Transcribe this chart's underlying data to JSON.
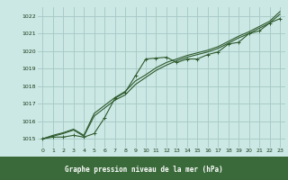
{
  "title": "Graphe pression niveau de la mer (hPa)",
  "bg_color": "#cce8e4",
  "grid_color": "#a8ccc8",
  "line_color": "#2d5a2d",
  "text_color": "#1a3a1a",
  "xlabel_bg": "#3a6a3a",
  "xlabel_fg": "#ffffff",
  "xlim": [
    -0.5,
    23.5
  ],
  "ylim": [
    1014.5,
    1022.5
  ],
  "xticks": [
    0,
    1,
    2,
    3,
    4,
    5,
    6,
    7,
    8,
    9,
    10,
    11,
    12,
    13,
    14,
    15,
    16,
    17,
    18,
    19,
    20,
    21,
    22,
    23
  ],
  "yticks": [
    1015,
    1016,
    1017,
    1018,
    1019,
    1020,
    1021,
    1022
  ],
  "series1_x": [
    0,
    1,
    2,
    3,
    4,
    5,
    6,
    7,
    8,
    9,
    10,
    11,
    12,
    13,
    14,
    15,
    16,
    17,
    18,
    19,
    20,
    21,
    22,
    23
  ],
  "series1_y": [
    1015.0,
    1015.1,
    1015.1,
    1015.2,
    1015.1,
    1015.3,
    1016.2,
    1017.3,
    1017.65,
    1018.6,
    1019.55,
    1019.6,
    1019.65,
    1019.35,
    1019.55,
    1019.55,
    1019.8,
    1019.95,
    1020.4,
    1020.5,
    1021.0,
    1021.15,
    1021.6,
    1021.85
  ],
  "series2_x": [
    0,
    1,
    2,
    3,
    4,
    5,
    6,
    7,
    8,
    9,
    10,
    11,
    12,
    13,
    14,
    15,
    16,
    17,
    18,
    19,
    20,
    21,
    22,
    23
  ],
  "series2_y": [
    1015.0,
    1015.15,
    1015.3,
    1015.5,
    1015.15,
    1016.3,
    1016.75,
    1017.2,
    1017.5,
    1018.1,
    1018.5,
    1018.9,
    1019.2,
    1019.45,
    1019.65,
    1019.8,
    1019.95,
    1020.15,
    1020.45,
    1020.75,
    1021.0,
    1021.3,
    1021.6,
    1022.1
  ],
  "series3_x": [
    0,
    1,
    2,
    3,
    4,
    5,
    6,
    7,
    8,
    9,
    10,
    11,
    12,
    13,
    14,
    15,
    16,
    17,
    18,
    19,
    20,
    21,
    22,
    23
  ],
  "series3_y": [
    1015.0,
    1015.2,
    1015.35,
    1015.55,
    1015.2,
    1016.45,
    1016.9,
    1017.35,
    1017.7,
    1018.3,
    1018.65,
    1019.05,
    1019.35,
    1019.55,
    1019.75,
    1019.9,
    1020.05,
    1020.25,
    1020.55,
    1020.85,
    1021.1,
    1021.4,
    1021.7,
    1022.25
  ]
}
